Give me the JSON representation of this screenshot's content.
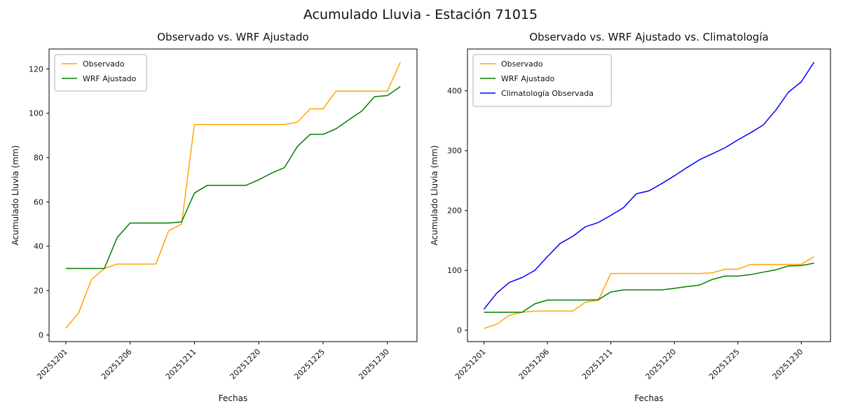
{
  "figure": {
    "suptitle": "Acumulado Lluvia - Estación 71015"
  },
  "chart_data": [
    {
      "type": "line",
      "title": "Observado vs. WRF Ajustado",
      "xlabel": "Fechas",
      "ylabel": "Acumulado Lluvia (mm)",
      "x_tick_labels": [
        "20251201",
        "20251206",
        "20251211",
        "20251220",
        "20251225",
        "20251230"
      ],
      "x_tick_positions": [
        0,
        5,
        10,
        15,
        20,
        25
      ],
      "ylim": [
        -3,
        129
      ],
      "yticks": [
        0,
        20,
        40,
        60,
        80,
        100,
        120
      ],
      "grid": false,
      "legend_position": "upper left",
      "series": [
        {
          "name": "Observado",
          "color": "#ffa500",
          "values": [
            3,
            10,
            25,
            30,
            32,
            32,
            32,
            32,
            47,
            50,
            95,
            95,
            95,
            95,
            95,
            95,
            95,
            95,
            96,
            102,
            102,
            110,
            110,
            110,
            110,
            110,
            123
          ]
        },
        {
          "name": "WRF Ajustado",
          "color": "#008000",
          "values": [
            30,
            30,
            30,
            30,
            44,
            50.5,
            50.5,
            50.5,
            50.5,
            51,
            64,
            67.5,
            67.5,
            67.5,
            67.5,
            70,
            73,
            75.5,
            85,
            90.5,
            90.5,
            93,
            97,
            101,
            107.5,
            108,
            112
          ]
        }
      ]
    },
    {
      "type": "line",
      "title": "Observado vs. WRF Ajustado vs. Climatología",
      "xlabel": "Fechas",
      "ylabel": "Acumulado Lluvia (mm)",
      "x_tick_labels": [
        "20251201",
        "20251206",
        "20251211",
        "20251220",
        "20251225",
        "20251230"
      ],
      "x_tick_positions": [
        0,
        5,
        10,
        15,
        20,
        25
      ],
      "ylim": [
        -19,
        470
      ],
      "yticks": [
        0,
        100,
        200,
        300,
        400
      ],
      "grid": false,
      "legend_position": "upper left",
      "series": [
        {
          "name": "Observado",
          "color": "#ffa500",
          "values": [
            3,
            10,
            25,
            30,
            32,
            32,
            32,
            32,
            47,
            50,
            95,
            95,
            95,
            95,
            95,
            95,
            95,
            95,
            96,
            102,
            102,
            110,
            110,
            110,
            110,
            110,
            123
          ]
        },
        {
          "name": "WRF Ajustado",
          "color": "#008000",
          "values": [
            30,
            30,
            30,
            30,
            44,
            50.5,
            50.5,
            50.5,
            50.5,
            51,
            64,
            67.5,
            67.5,
            67.5,
            67.5,
            70,
            73,
            75.5,
            85,
            90.5,
            90.5,
            93,
            97,
            101,
            107.5,
            108,
            112
          ]
        },
        {
          "name": "Climatología Observada",
          "color": "#0000ff",
          "values": [
            35,
            62,
            80,
            88,
            100,
            123,
            145,
            157,
            173,
            180,
            192,
            205,
            228,
            233,
            245,
            258,
            272,
            285,
            295,
            305,
            318,
            330,
            343,
            368,
            398,
            415,
            448
          ]
        }
      ]
    }
  ]
}
